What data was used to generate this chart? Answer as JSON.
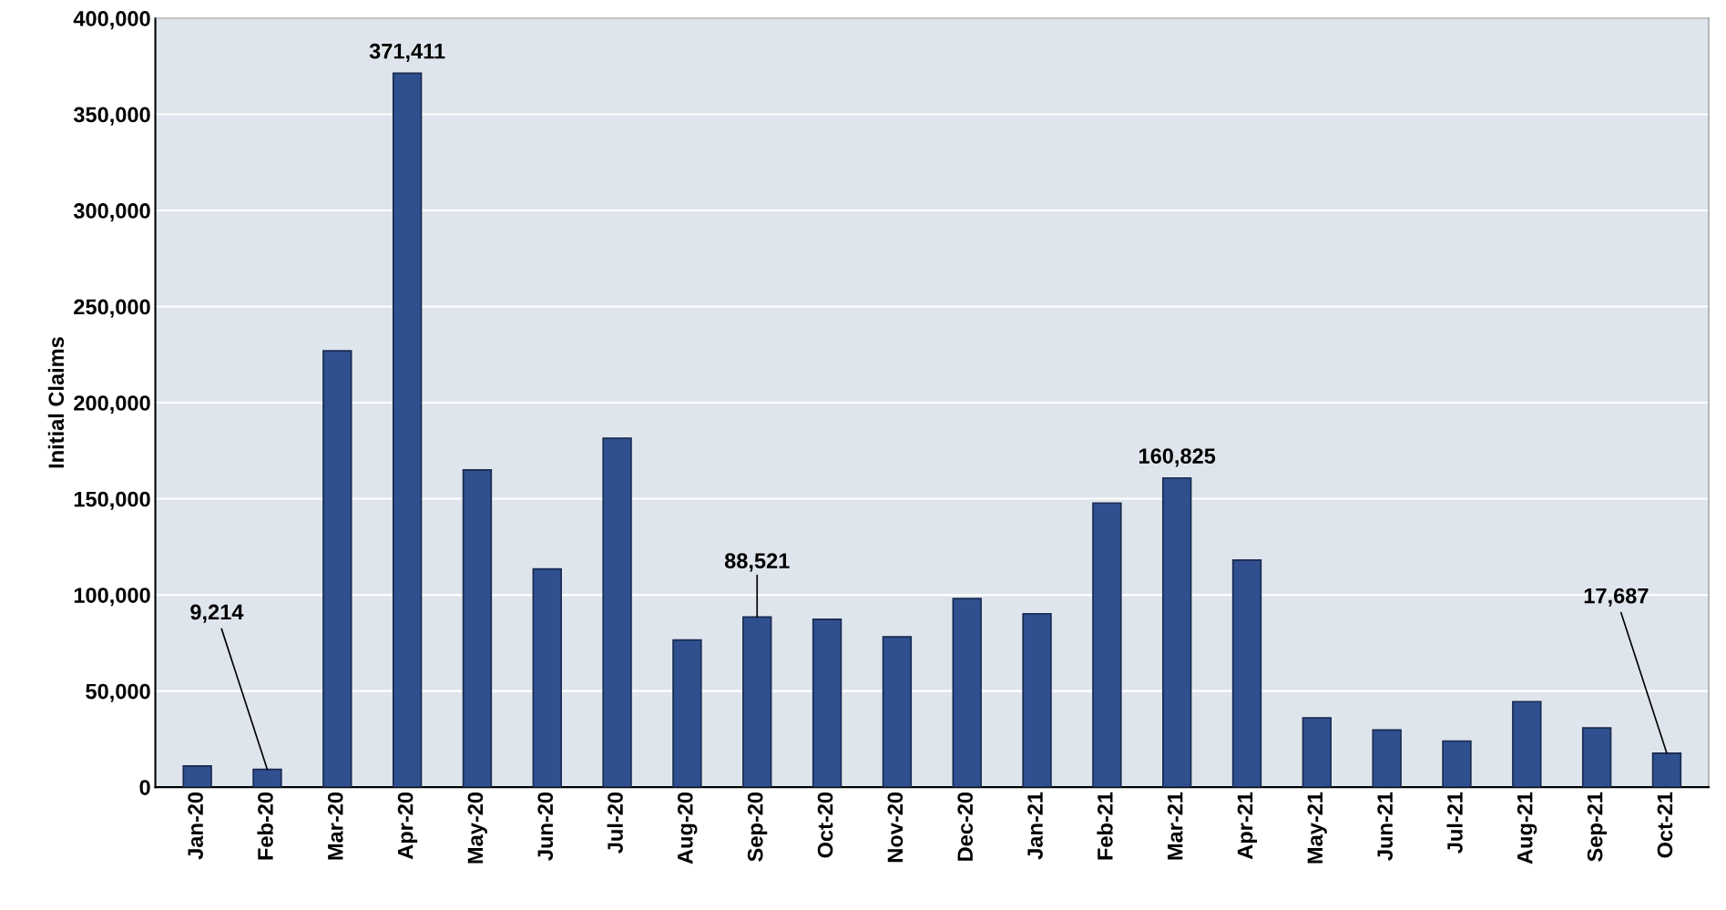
{
  "chart_data": {
    "type": "bar",
    "ylabel": "Initial Claims",
    "categories": [
      "Jan-20",
      "Feb-20",
      "Mar-20",
      "Apr-20",
      "May-20",
      "Jun-20",
      "Jul-20",
      "Aug-20",
      "Sep-20",
      "Oct-20",
      "Nov-20",
      "Dec-20",
      "Jan-21",
      "Feb-21",
      "Mar-21",
      "Apr-21",
      "May-21",
      "Jun-21",
      "Jul-21",
      "Aug-21",
      "Sep-21",
      "Oct-21"
    ],
    "values": [
      11000,
      9214,
      227000,
      371411,
      165000,
      113500,
      181500,
      76500,
      88521,
      87300,
      78200,
      98100,
      90200,
      147800,
      160825,
      118100,
      36000,
      29700,
      24000,
      44500,
      30800,
      17687
    ],
    "value_labels": [
      null,
      "9,214",
      null,
      "371,411",
      null,
      null,
      null,
      null,
      "88,521",
      null,
      null,
      null,
      null,
      null,
      "160,825",
      null,
      null,
      null,
      null,
      null,
      null,
      "17,687"
    ],
    "color": "#2f4f8f",
    "ylim": [
      0,
      400000
    ],
    "yticks": [
      {
        "value": 0,
        "label": "0"
      },
      {
        "value": 50000,
        "label": "50,000"
      },
      {
        "value": 100000,
        "label": "100,000"
      },
      {
        "value": 150000,
        "label": "150,000"
      },
      {
        "value": 200000,
        "label": "200,000"
      },
      {
        "value": 250000,
        "label": "250,000"
      },
      {
        "value": 300000,
        "label": "300,000"
      },
      {
        "value": 350000,
        "label": "350,000"
      },
      {
        "value": 400000,
        "label": "400,000"
      }
    ],
    "grid": "y"
  }
}
